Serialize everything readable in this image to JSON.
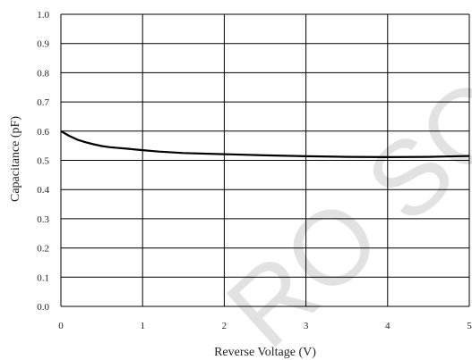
{
  "chart_data": {
    "type": "line",
    "title": "",
    "xlabel": "Reverse Voltage (V)",
    "ylabel": "Capacitance (pF)",
    "xlim": [
      0,
      5
    ],
    "ylim": [
      0,
      1.0
    ],
    "xticks": [
      "0",
      "1",
      "2",
      "3",
      "4",
      "5"
    ],
    "yticks": [
      "0.0",
      "0.1",
      "0.2",
      "0.3",
      "0.4",
      "0.5",
      "0.6",
      "0.7",
      "0.8",
      "0.9",
      "1.0"
    ],
    "grid": true,
    "legend": "none",
    "line_color": "#000000",
    "series": [
      {
        "x": [
          0,
          0.1,
          0.2,
          0.3,
          0.4,
          0.5,
          0.6,
          0.8,
          1.0,
          1.2,
          1.5,
          2.0,
          2.5,
          3.0,
          3.5,
          4.0,
          4.5,
          5.0
        ],
        "values": [
          0.6,
          0.584,
          0.571,
          0.562,
          0.555,
          0.549,
          0.545,
          0.54,
          0.535,
          0.53,
          0.525,
          0.521,
          0.517,
          0.514,
          0.512,
          0.511,
          0.512,
          0.515
        ]
      }
    ]
  },
  "watermark": "RO SO"
}
